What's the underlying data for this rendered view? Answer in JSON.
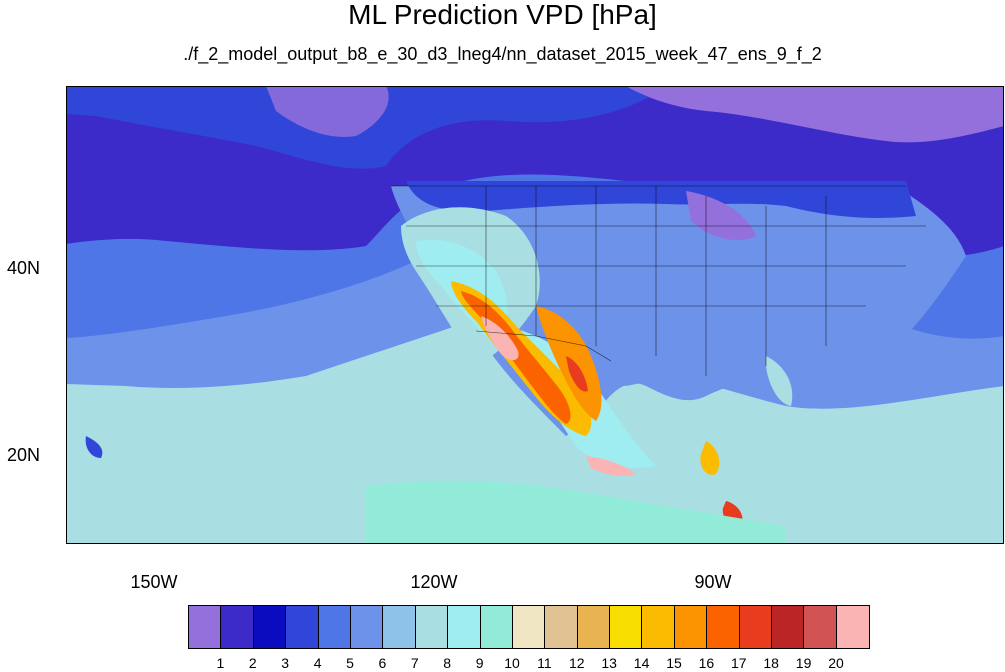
{
  "title": "ML Prediction VPD [hPa]",
  "subtitle": "./f_2_model_output_b8_e_30_d3_lneg4/nn_dataset_2015_week_47_ens_9_f_2",
  "lat_labels": [
    "40N",
    "20N"
  ],
  "lon_labels": [
    "150W",
    "120W",
    "90W"
  ],
  "colorbar": {
    "colors": [
      "#9370db",
      "#3c2bc8",
      "#0b0bc0",
      "#2f46d8",
      "#4e76e6",
      "#6c92ea",
      "#8fc2e8",
      "#a9dee3",
      "#9fedf0",
      "#92ebd8",
      "#f1e6c4",
      "#e1c292",
      "#e8b452",
      "#f7de00",
      "#fbbb00",
      "#fc9300",
      "#fb6300",
      "#e93c1e",
      "#bc2525",
      "#d25353",
      "#fbb4b4"
    ],
    "labels": [
      "1",
      "2",
      "3",
      "4",
      "5",
      "6",
      "7",
      "8",
      "9",
      "10",
      "11",
      "12",
      "13",
      "14",
      "15",
      "16",
      "17",
      "18",
      "19",
      "20"
    ]
  },
  "colors": {
    "ocean_north": "#3c2bc8",
    "ocean_mid": "#4e76e6",
    "ocean_south": "#a9dee3",
    "arctic": "#9370db",
    "land_east": "#6c92ea",
    "desert_hot": "#fb6300",
    "desert_peak": "#fbb4b4"
  }
}
